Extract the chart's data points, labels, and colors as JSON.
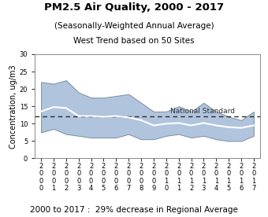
{
  "title": "PM2.5 Air Quality, 2000 - 2017",
  "subtitle1": "(Seasonally-Weighted Annual Average)",
  "subtitle2": "West Trend based on 50 Sites",
  "xlabel_bottom": "2000 to 2017 :  29% decrease in Regional Average",
  "ylabel": "Concentration, ug/m3",
  "national_standard": 12.0,
  "national_standard_label": "National Standard",
  "years": [
    2000,
    2001,
    2002,
    2003,
    2004,
    2005,
    2006,
    2007,
    2008,
    2009,
    2010,
    2011,
    2012,
    2013,
    2014,
    2015,
    2016,
    2017
  ],
  "mean": [
    13.5,
    14.8,
    14.5,
    12.2,
    12.2,
    12.0,
    12.2,
    11.8,
    11.0,
    9.5,
    10.0,
    10.2,
    9.5,
    10.2,
    9.5,
    9.0,
    8.8,
    9.5
  ],
  "upper": [
    22.0,
    21.5,
    22.5,
    19.0,
    17.5,
    17.5,
    18.0,
    18.5,
    16.0,
    13.5,
    13.5,
    15.0,
    13.5,
    16.0,
    13.5,
    12.0,
    11.0,
    13.5
  ],
  "lower": [
    7.5,
    8.5,
    7.0,
    6.5,
    6.0,
    6.0,
    6.0,
    7.0,
    5.5,
    5.5,
    6.5,
    7.0,
    6.0,
    6.5,
    5.5,
    5.0,
    5.0,
    6.5
  ],
  "ylim": [
    0,
    30
  ],
  "yticks": [
    0,
    5,
    10,
    15,
    20,
    25,
    30
  ],
  "fill_color": "#b0c4de",
  "fill_edge_color": "#7a8ea0",
  "mean_line_color": "#ffffff",
  "background_color": "#ffffff",
  "axes_background": "#ffffff",
  "dashed_color": "#2a2a2a",
  "title_fontsize": 9.5,
  "subtitle_fontsize": 7.5,
  "label_fontsize": 7.0,
  "tick_fontsize": 6.0,
  "ns_label_fontsize": 6.5
}
